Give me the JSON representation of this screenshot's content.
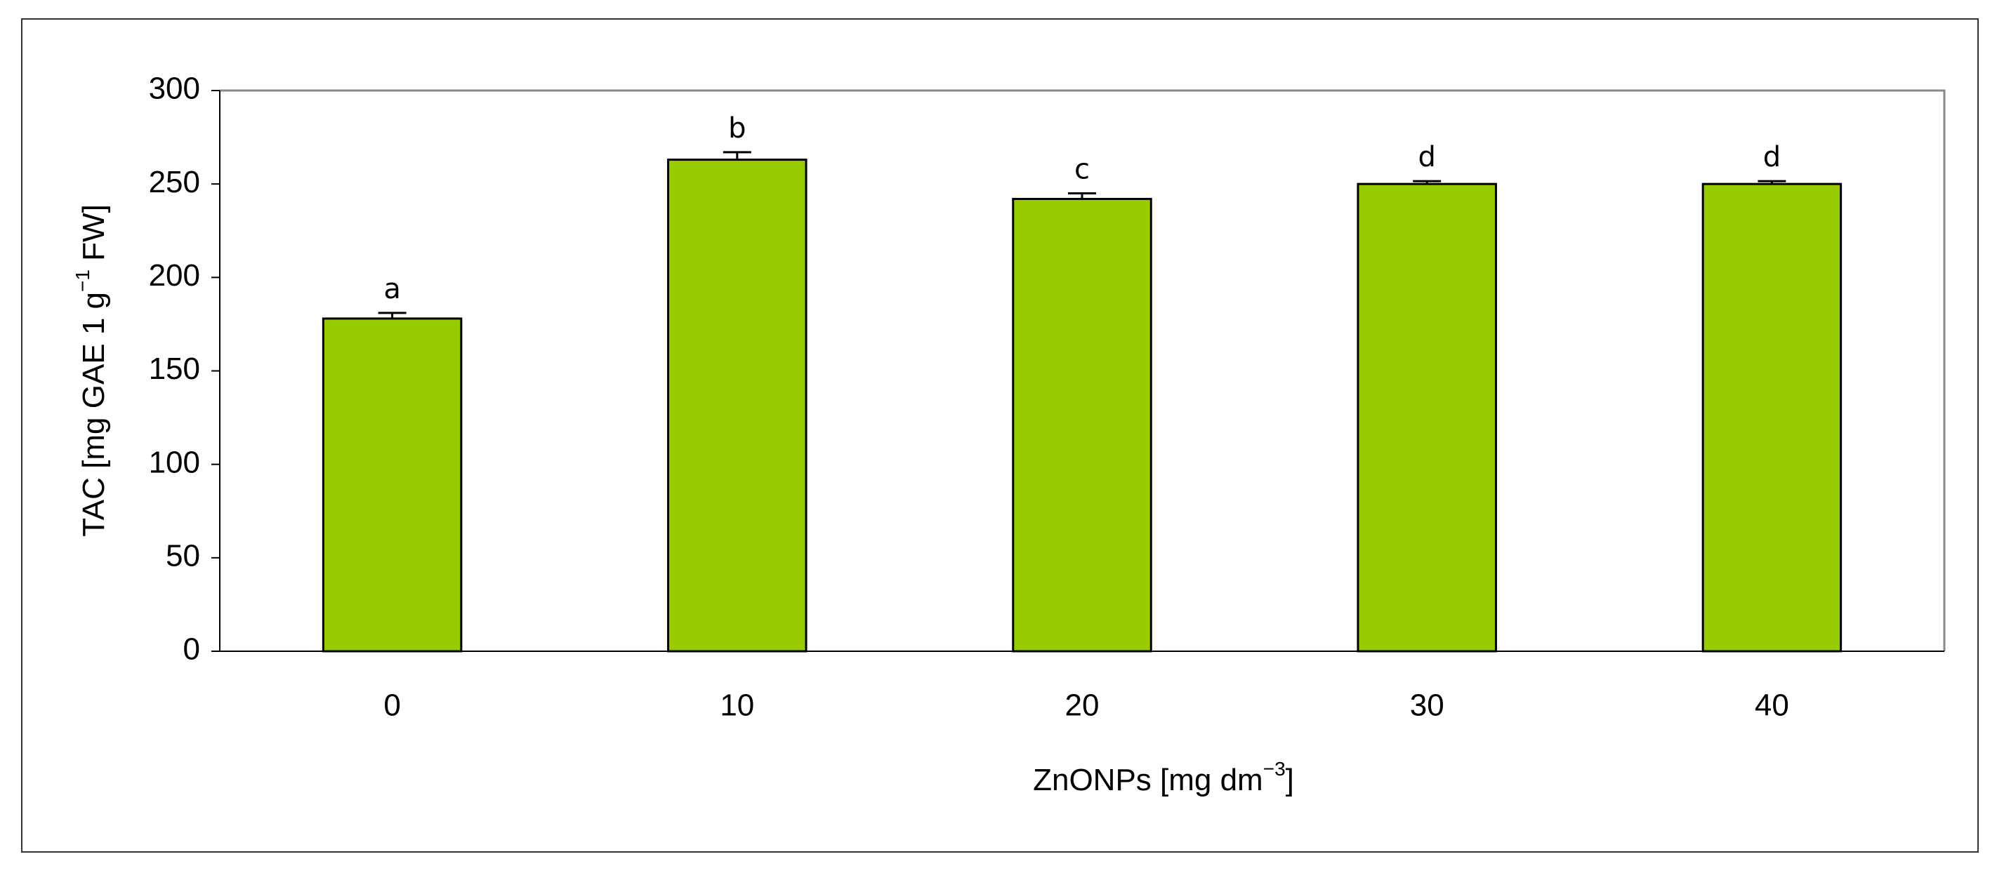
{
  "chart_data": {
    "type": "bar",
    "categories": [
      "0",
      "10",
      "20",
      "30",
      "40"
    ],
    "values": [
      178,
      263,
      242,
      250,
      250
    ],
    "errors": [
      3,
      4,
      3,
      1.5,
      1.5
    ],
    "annotations": [
      "a",
      "b",
      "c",
      "d",
      "d"
    ],
    "color": "#99cc00",
    "ylabel": [
      "TAC [mg GAE 1 g",
      "−1",
      " FW]"
    ],
    "xlabel": [
      "ZnONPs [mg dm",
      "−3",
      "]"
    ],
    "ylim": [
      0,
      300
    ],
    "yticks": [
      0,
      50,
      100,
      150,
      200,
      250,
      300
    ]
  }
}
